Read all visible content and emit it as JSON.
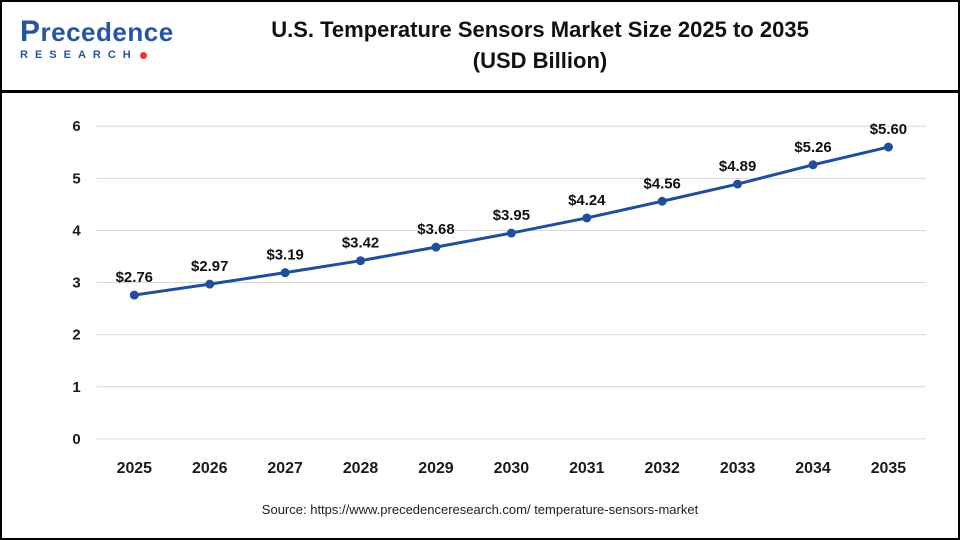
{
  "header": {
    "logo_top": "Precedence",
    "logo_bottom": "RESEARCH",
    "title_line1": "U.S. Temperature Sensors Market Size 2025 to 2035",
    "title_line2": "(USD Billion)"
  },
  "footer": {
    "source": "Source: https://www.precedenceresearch.com/ temperature-sensors-market"
  },
  "colors": {
    "line": "#1f4e9c",
    "grid": "#d9d9d9",
    "tick_text": "#1a1a1a",
    "label_text": "#111111",
    "logo_blue": "#2456a4",
    "logo_red": "#e03a3e"
  },
  "chart_data": {
    "type": "line",
    "title": "U.S. Temperature Sensors Market Size 2025 to 2035 (USD Billion)",
    "categories": [
      "2025",
      "2026",
      "2027",
      "2028",
      "2029",
      "2030",
      "2031",
      "2032",
      "2033",
      "2034",
      "2035"
    ],
    "values": [
      2.76,
      2.97,
      3.19,
      3.42,
      3.68,
      3.95,
      4.24,
      4.56,
      4.89,
      5.26,
      5.6
    ],
    "point_labels": [
      "$2.76",
      "$2.97",
      "$3.19",
      "$3.42",
      "$3.68",
      "$3.95",
      "$4.24",
      "$4.56",
      "$4.89",
      "$5.26",
      "$5.60"
    ],
    "xlabel": "",
    "ylabel": "",
    "ylim": [
      0,
      6
    ],
    "yticks": [
      0,
      1,
      2,
      3,
      4,
      5,
      6
    ],
    "grid": true,
    "legend_position": "none",
    "line_color": "#1f4e9c",
    "marker": "circle"
  }
}
